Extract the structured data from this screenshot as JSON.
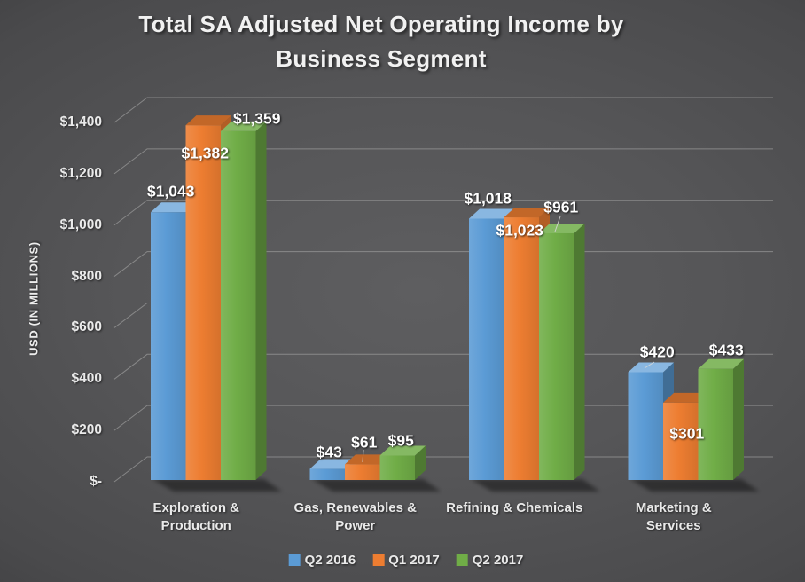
{
  "chart_data": {
    "type": "bar",
    "style": "3d-clustered-column",
    "title": "Total SA Adjusted Net Operating Income by Business Segment",
    "title_lines": [
      "Total SA Adjusted Net Operating Income by",
      "Business Segment"
    ],
    "ylabel": "USD (IN MILLIONS)",
    "ylim": [
      0,
      1400
    ],
    "y_tick_step": 200,
    "y_tick_labels": [
      "$1,400",
      "$1,200",
      "$1,000",
      "$800",
      "$600",
      "$400",
      "$200",
      "$-"
    ],
    "grid": true,
    "legend_position": "bottom",
    "categories": [
      "Exploration & Production",
      "Gas, Renewables & Power",
      "Refining & Chemicals",
      "Marketing & Services"
    ],
    "category_label_lines": [
      [
        "Exploration &",
        "Production"
      ],
      [
        "Gas, Renewables &",
        "Power"
      ],
      [
        "Refining & Chemicals"
      ],
      [
        "Marketing &",
        "Services"
      ]
    ],
    "series": [
      {
        "name": "Q2 2016",
        "color": "#5B9BD5",
        "values": [
          1043,
          43,
          1018,
          420
        ],
        "data_labels": [
          "$1,043",
          "$43",
          "$1,018",
          "$420"
        ]
      },
      {
        "name": "Q1 2017",
        "color": "#ED7D31",
        "values": [
          1382,
          61,
          1023,
          301
        ],
        "data_labels": [
          "$1,382",
          "$61",
          "$1,023",
          "$301"
        ]
      },
      {
        "name": "Q2 2017",
        "color": "#70AD47",
        "values": [
          1359,
          95,
          961,
          433
        ],
        "data_labels": [
          "$1,359",
          "$95",
          "$961",
          "$433"
        ]
      }
    ]
  },
  "colors": {
    "background_center": "#5e5e60",
    "background_edge": "#262627",
    "gridline": "#9b9b9b",
    "text": "#ececec",
    "data_label": "#ffffff"
  }
}
